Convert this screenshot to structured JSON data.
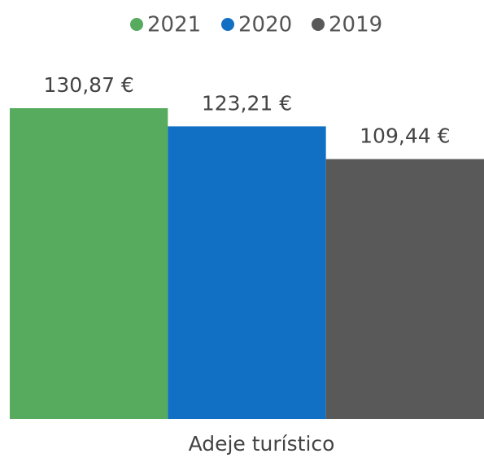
{
  "chart_data": {
    "type": "bar",
    "categories": [
      "Adeje turístico"
    ],
    "series": [
      {
        "name": "2021",
        "color": "#56ab5e",
        "values": [
          130.87
        ],
        "value_labels": [
          "130,87 €"
        ]
      },
      {
        "name": "2020",
        "color": "#1170c4",
        "values": [
          123.21
        ],
        "value_labels": [
          "123,21 €"
        ]
      },
      {
        "name": "2019",
        "color": "#595959",
        "values": [
          109.44
        ],
        "value_labels": [
          "109,44 €"
        ]
      }
    ],
    "legend": "top"
  }
}
